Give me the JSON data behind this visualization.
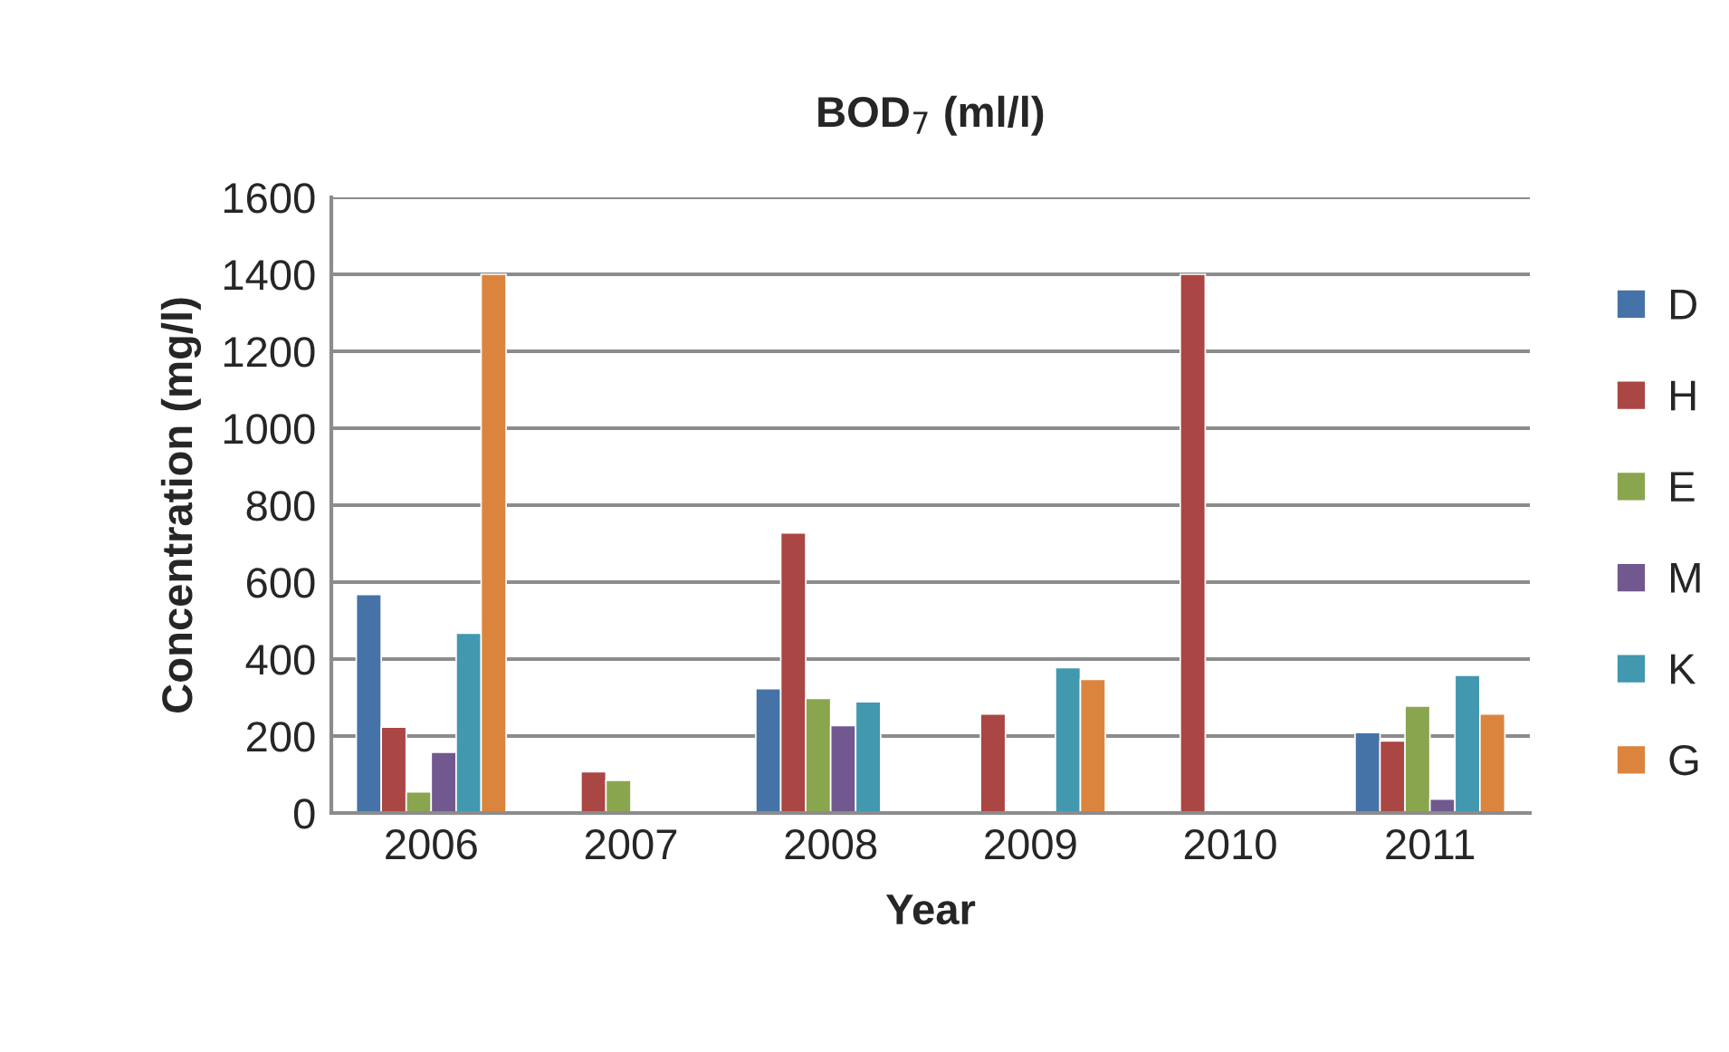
{
  "chart_data": {
    "type": "bar",
    "title": "BOD$_{7}$ (ml/l)",
    "xlabel": "Year",
    "ylabel": "Concentration (mg/l)",
    "categories": [
      "2006",
      "2007",
      "2008",
      "2009",
      "2010",
      "2011"
    ],
    "series": [
      {
        "name": "D",
        "color": "#4572a7",
        "values": [
          568,
          null,
          323,
          null,
          null,
          209
        ]
      },
      {
        "name": "H",
        "color": "#aa4643",
        "values": [
          223,
          107,
          728,
          257,
          1400,
          187
        ]
      },
      {
        "name": "E",
        "color": "#89a54e",
        "values": [
          55,
          85,
          298,
          null,
          null,
          278
        ]
      },
      {
        "name": "M",
        "color": "#71588f",
        "values": [
          158,
          null,
          227,
          null,
          null,
          36
        ]
      },
      {
        "name": "K",
        "color": "#4198af",
        "values": [
          467,
          null,
          289,
          378,
          null,
          358
        ]
      },
      {
        "name": "G",
        "color": "#db843d",
        "values": [
          1400,
          null,
          null,
          347,
          null,
          257
        ]
      }
    ],
    "ylim": [
      0,
      1600
    ],
    "yticks": [
      0,
      200,
      400,
      600,
      800,
      1000,
      1200,
      1400,
      1600
    ],
    "grid": "y",
    "legend": "right"
  }
}
